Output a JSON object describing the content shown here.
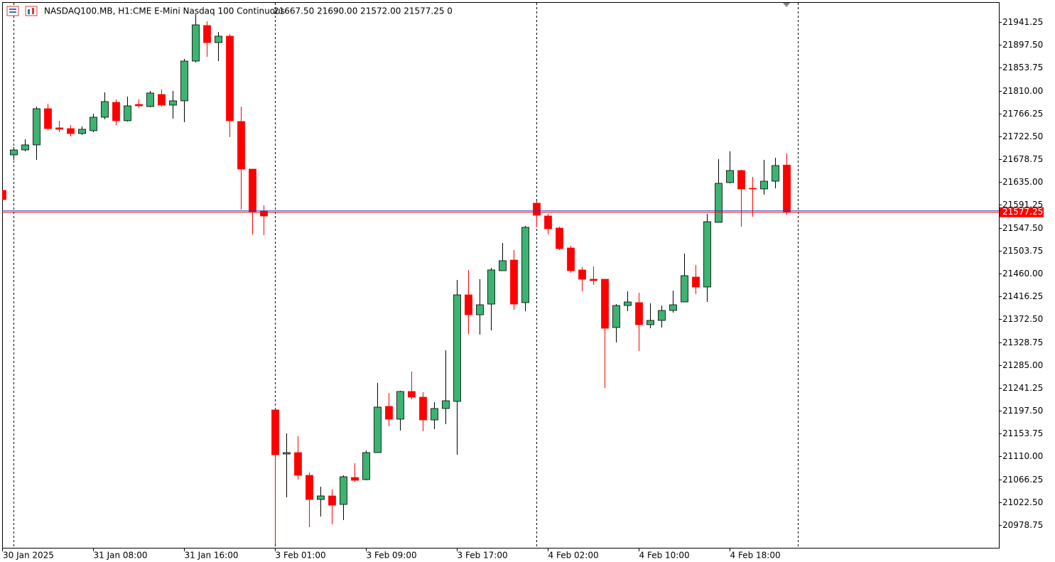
{
  "chart_data": {
    "type": "candlestick",
    "title": "NASDAQ100.MB, H1:",
    "subtitle": "CME E-Mini Nasdaq 100 Continuous",
    "ohlc_text": "21667.50 21690.00 21572.00 21577.25 0",
    "up_color": "#3cb371",
    "down_color": "#ff0000",
    "current_price": 21577.25,
    "current_price_color": "#ff0000",
    "ask_price": 21580,
    "ask_color": "#3b3bb0",
    "categories": [
      "30 Jan 2025",
      null,
      null,
      null,
      null,
      null,
      null,
      null,
      "31 Jan 08:00",
      null,
      null,
      null,
      null,
      null,
      null,
      null,
      "31 Jan 16:00",
      null,
      null,
      null,
      null,
      null,
      null,
      null,
      "3 Feb 01:00",
      null,
      null,
      null,
      null,
      null,
      null,
      null,
      "3 Feb 09:00",
      null,
      null,
      null,
      null,
      null,
      null,
      null,
      "3 Feb 17:00",
      null,
      null,
      null,
      null,
      null,
      null,
      null,
      "4 Feb 02:00",
      null,
      null,
      null,
      null,
      null,
      null,
      null,
      "4 Feb 10:00",
      null,
      null,
      null,
      null,
      null,
      null,
      null,
      "4 Feb 18:00",
      null,
      null,
      null,
      null,
      null
    ],
    "open": [
      21619.1,
      21687,
      21696.5,
      21706.1,
      21775.4,
      21738.7,
      21737.3,
      21727.8,
      21733.3,
      21759.1,
      21787.6,
      21752.3,
      21783.6,
      21779.5,
      21802.6,
      21782.2,
      21790.4,
      21866.5,
      21934.5,
      21901.8,
      21914.1,
      21750.9,
      21659.8,
      21579.6,
      21199,
      21114.7,
      21117.4,
      21073.9,
      21027.7,
      21034.5,
      21018.2,
      21069.8,
      21065.7,
      21117.4,
      21205.8,
      21181.3,
      21234.3,
      21223.4,
      21179.9,
      21201.7,
      21215.3,
      21419.2,
      21381.1,
      21401.5,
      21465.4,
      21485.8,
      21404.3,
      21594.6,
      21570.1,
      21547,
      21508.9,
      21466.8,
      21449.1,
      21449.1,
      21356.7,
      21398.8,
      21404.3,
      21362.1,
      21370.3,
      21389.3,
      21405.6,
      21453.2,
      21434.2,
      21557.9,
      21634,
      21657.1,
      21623.1,
      21621.8,
      21636.7,
      21667.5
    ],
    "high": [
      21619.1,
      21702,
      21716.9,
      21779.5,
      21784.9,
      21752.3,
      21744.1,
      21741.4,
      21765.9,
      21806.7,
      21793.1,
      21798.5,
      21793.1,
      21809.4,
      21812.1,
      21809.4,
      21870.6,
      21956.2,
      21942.6,
      21922.2,
      21918.1,
      21779.5,
      21659.8,
      21590.5,
      21199,
      21154.1,
      21148.7,
      21079.3,
      21052.1,
      21046.7,
      21073.9,
      21097,
      21121.5,
      21250.6,
      21231.6,
      21235.7,
      21272.4,
      21233,
      21213.9,
      21313.2,
      21447.8,
      21466.8,
      21449.1,
      21470.9,
      21518.5,
      21504.9,
      21551.1,
      21598.7,
      21574.2,
      21549.7,
      21513,
      21472.2,
      21473.6,
      21449.1,
      21401.5,
      21426,
      21423.3,
      21402.9,
      21398.8,
      21427.4,
      21498.1,
      21476.3,
      21574.2,
      21678.9,
      21693.8,
      21658.5,
      21644.9,
      21677.5,
      21681.6,
      21690
    ],
    "low": [
      21601.4,
      21677.5,
      21693.8,
      21677.5,
      21734.6,
      21730.5,
      21722.4,
      21725.1,
      21730.5,
      21755,
      21744.1,
      21750.9,
      21776.8,
      21778.1,
      21779.5,
      21756.4,
      21749.6,
      21863.8,
      21874.6,
      21866.5,
      21721,
      21582.3,
      21534.8,
      21533.4,
      20942,
      21031.7,
      21065.7,
      20974.7,
      20995,
      20980.1,
      20988.2,
      21061.7,
      21064.4,
      21117.4,
      21167.7,
      21159.5,
      21219.4,
      21158.2,
      21162.3,
      21171.8,
      21113.3,
      21344.4,
      21343.1,
      21351.2,
      21465.4,
      21390.7,
      21387.9,
      21548.4,
      21534.8,
      21504.9,
      21461.4,
      21426,
      21438.2,
      21241.1,
      21328.1,
      21387.9,
      21311.8,
      21355.3,
      21356.7,
      21385.2,
      21405.6,
      21420.6,
      21405.6,
      21557.9,
      21632.6,
      21549.7,
      21568.8,
      21610.9,
      21623.1,
      21572
    ],
    "close": [
      21601.4,
      21696.5,
      21706.1,
      21775.4,
      21737.3,
      21736,
      21727.8,
      21736,
      21759.1,
      21789,
      21752.3,
      21780.8,
      21780.8,
      21805.3,
      21782.2,
      21790.4,
      21866.5,
      21935.8,
      21901.8,
      21914.1,
      21752.3,
      21659.8,
      21578.3,
      21570.1,
      21113.3,
      21117.4,
      21073.9,
      21027.7,
      21034.5,
      21016.8,
      21071.2,
      21064.4,
      21117.4,
      21204.4,
      21181.3,
      21234.3,
      21223.4,
      21179.9,
      21201.7,
      21216.6,
      21419.2,
      21381.1,
      21400.2,
      21466.8,
      21484.5,
      21401.5,
      21548.4,
      21571.5,
      21545.6,
      21507.6,
      21465.4,
      21449.1,
      21446.4,
      21355.3,
      21398.8,
      21405.6,
      21362.1,
      21370.3,
      21389.3,
      21400.2,
      21455.9,
      21434.2,
      21559.2,
      21632.6,
      21657.1,
      21621.8,
      21621.8,
      21636.7,
      21666.6,
      21577.25
    ],
    "ylim": [
      20935.25,
      21979.25
    ],
    "yticks": [
      21941.25,
      {
        "value": 21897.5,
        "label": "21897.50"
      },
      21853.75,
      {
        "value": 21810,
        "label": "21810.00"
      },
      21766.25,
      {
        "value": 21722.5,
        "label": "21722.50"
      },
      21678.75,
      {
        "value": 21635,
        "label": "21635.00"
      },
      21591.25,
      {
        "value": 21547.5,
        "label": "21547.50"
      },
      21503.75,
      {
        "value": 21460,
        "label": "21460.00"
      },
      21416.25,
      {
        "value": 21372.5,
        "label": "21372.50"
      },
      21328.75,
      {
        "value": 21285,
        "label": "21285.00"
      },
      21241.25,
      {
        "value": 21197.5,
        "label": "21197.50"
      },
      21153.75,
      {
        "value": 21110,
        "label": "21110.00"
      },
      21066.25,
      {
        "value": 21022.5,
        "label": "21022.50"
      },
      20978.75
    ],
    "grid": false
  }
}
